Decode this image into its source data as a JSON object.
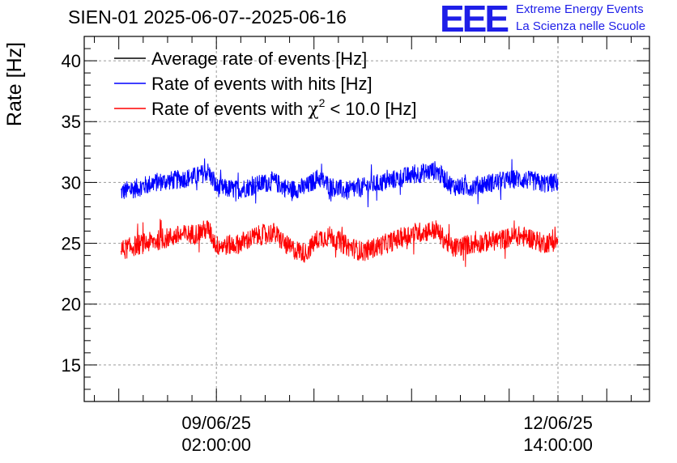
{
  "chart_data": {
    "type": "line",
    "title": "SIEN-01 2025-06-07--2025-06-16",
    "ylabel": "Rate [Hz]",
    "xlabel": "",
    "ylim": [
      12,
      42
    ],
    "yticks": [
      15,
      20,
      25,
      30,
      35,
      40
    ],
    "xlim_hours": [
      -32.5,
      106.5
    ],
    "xticks": [
      {
        "hours": 0,
        "label_date": "09/06/25",
        "label_time": "02:00:00"
      },
      {
        "hours": 84,
        "label_date": "12/06/25",
        "label_time": "14:00:00"
      }
    ],
    "legend": {
      "position": "top-left",
      "entries": [
        {
          "label": "Average rate of events [Hz]",
          "color": "#000000"
        },
        {
          "label": "Rate of events with hits [Hz]",
          "color": "#0000ff"
        },
        {
          "label_prefix": "Rate of events with ",
          "label_symbol": "χ",
          "label_sup": "2",
          "label_suffix": " < 10.0 [Hz]",
          "color": "#ff0000"
        }
      ]
    },
    "series": [
      {
        "name": "Rate of events with hits [Hz]",
        "color": "#0000ff",
        "x_hours": [
          -23.5,
          -20,
          -15,
          -10,
          -5,
          -2,
          0,
          5,
          10,
          14,
          18,
          22,
          25,
          28,
          32,
          36,
          42,
          48,
          54,
          58,
          62,
          66,
          70,
          74,
          78,
          80,
          84
        ],
        "values": [
          29.2,
          29.5,
          30.0,
          30.2,
          30.5,
          30.9,
          29.6,
          29.4,
          29.8,
          30.1,
          29.4,
          29.6,
          30.4,
          29.7,
          29.3,
          29.6,
          30.1,
          30.6,
          31.0,
          29.7,
          29.6,
          29.9,
          30.1,
          30.3,
          30.1,
          29.9,
          30.0
        ],
        "noise_amplitude": 0.8
      },
      {
        "name": "Rate of events with χ2 < 10.0 [Hz]",
        "color": "#ff0000",
        "x_hours": [
          -23.5,
          -20,
          -15,
          -10,
          -5,
          -2,
          0,
          5,
          10,
          14,
          18,
          22,
          25,
          28,
          32,
          36,
          42,
          48,
          54,
          58,
          62,
          66,
          70,
          74,
          78,
          80,
          84
        ],
        "values": [
          24.4,
          24.8,
          25.2,
          25.6,
          25.8,
          26.2,
          24.8,
          24.9,
          25.6,
          25.9,
          24.6,
          24.2,
          25.4,
          25.6,
          24.8,
          24.3,
          25.0,
          25.8,
          26.1,
          24.6,
          24.9,
          25.1,
          25.3,
          25.6,
          25.4,
          25.0,
          25.2
        ],
        "noise_amplitude": 0.85
      }
    ]
  },
  "logo": {
    "mark": "EEE",
    "line1": "Extreme Energy Events",
    "line2": "La Scienza nelle Scuole"
  }
}
